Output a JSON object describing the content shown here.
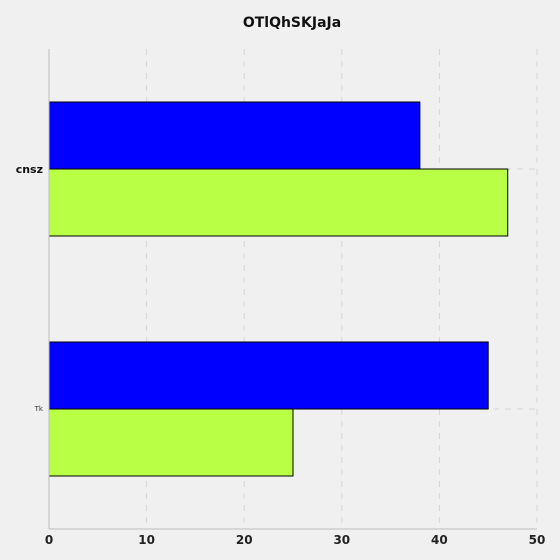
{
  "chart_data": {
    "type": "bar",
    "orientation": "horizontal",
    "title": "OTlQhSKJaJa",
    "xlabel": "",
    "ylabel": "",
    "categories": [
      "Tk",
      "cnsz"
    ],
    "series": [
      {
        "values": [
          45,
          38
        ],
        "color": "#0000ff"
      },
      {
        "values": [
          25,
          47
        ],
        "color": "#b8ff45"
      }
    ],
    "xlim": [
      0,
      50
    ],
    "xticks": [
      "0",
      "10",
      "20",
      "30",
      "40",
      "50"
    ],
    "grid": true,
    "legend": "none"
  }
}
